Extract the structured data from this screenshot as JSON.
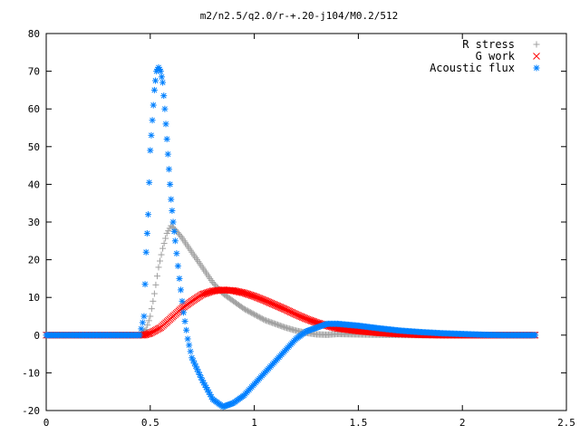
{
  "chart_data": {
    "type": "scatter",
    "title": "m2/n2.5/q2.0/r-+.20-j104/M0.2/512",
    "xlabel": "",
    "ylabel": "",
    "xlim": [
      0,
      2.5
    ],
    "ylim": [
      -20,
      80
    ],
    "xticks": [
      0,
      0.5,
      1,
      1.5,
      2,
      2.5
    ],
    "xtick_labels": [
      "0",
      "0.5",
      "1",
      "1.5",
      "2",
      "2.5"
    ],
    "yticks": [
      -20,
      -10,
      0,
      10,
      20,
      30,
      40,
      50,
      60,
      70,
      80
    ],
    "ytick_labels": [
      "-20",
      "-10",
      "0",
      "10",
      "20",
      "30",
      "40",
      "50",
      "60",
      "70",
      "80"
    ],
    "grid": false,
    "legend_position": "top-right",
    "series": [
      {
        "name": "R stress",
        "marker": "+",
        "color": "#a0a0a0",
        "points": [
          [
            0.0,
            0
          ],
          [
            0.1,
            0
          ],
          [
            0.2,
            0
          ],
          [
            0.3,
            0
          ],
          [
            0.4,
            0
          ],
          [
            0.45,
            0
          ],
          [
            0.48,
            1.5
          ],
          [
            0.5,
            5
          ],
          [
            0.52,
            11
          ],
          [
            0.54,
            18
          ],
          [
            0.56,
            23
          ],
          [
            0.58,
            27
          ],
          [
            0.6,
            29
          ],
          [
            0.62,
            28
          ],
          [
            0.65,
            26
          ],
          [
            0.7,
            22
          ],
          [
            0.75,
            18
          ],
          [
            0.8,
            14
          ],
          [
            0.85,
            11
          ],
          [
            0.9,
            9
          ],
          [
            0.95,
            7
          ],
          [
            1.0,
            5.5
          ],
          [
            1.05,
            4
          ],
          [
            1.1,
            3
          ],
          [
            1.15,
            2
          ],
          [
            1.2,
            1.2
          ],
          [
            1.25,
            0.6
          ],
          [
            1.3,
            0.2
          ],
          [
            1.35,
            0.1
          ],
          [
            1.4,
            0.3
          ],
          [
            1.5,
            0.2
          ],
          [
            1.6,
            0.1
          ],
          [
            1.8,
            0
          ],
          [
            2.0,
            0
          ],
          [
            2.2,
            0
          ],
          [
            2.35,
            0
          ]
        ]
      },
      {
        "name": "G work",
        "marker": "x",
        "color": "#ff0000",
        "points": [
          [
            0.0,
            0
          ],
          [
            0.2,
            0
          ],
          [
            0.4,
            0
          ],
          [
            0.47,
            0
          ],
          [
            0.5,
            0.5
          ],
          [
            0.55,
            2
          ],
          [
            0.6,
            4.5
          ],
          [
            0.65,
            7
          ],
          [
            0.7,
            9
          ],
          [
            0.75,
            10.8
          ],
          [
            0.8,
            11.7
          ],
          [
            0.85,
            12
          ],
          [
            0.9,
            11.8
          ],
          [
            0.95,
            11.2
          ],
          [
            1.0,
            10.3
          ],
          [
            1.05,
            9.2
          ],
          [
            1.1,
            8
          ],
          [
            1.15,
            6.8
          ],
          [
            1.2,
            5.5
          ],
          [
            1.25,
            4.3
          ],
          [
            1.3,
            3.3
          ],
          [
            1.35,
            2.5
          ],
          [
            1.4,
            1.8
          ],
          [
            1.5,
            1.1
          ],
          [
            1.6,
            0.6
          ],
          [
            1.7,
            0.3
          ],
          [
            1.8,
            0.1
          ],
          [
            1.9,
            0
          ],
          [
            2.0,
            0
          ],
          [
            2.2,
            0
          ],
          [
            2.35,
            0
          ]
        ]
      },
      {
        "name": "Acoustic flux",
        "marker": "*",
        "color": "#0080ff",
        "points": [
          [
            0.0,
            0
          ],
          [
            0.1,
            0
          ],
          [
            0.2,
            0
          ],
          [
            0.3,
            0
          ],
          [
            0.4,
            0
          ],
          [
            0.45,
            0
          ],
          [
            0.47,
            5
          ],
          [
            0.48,
            22
          ],
          [
            0.49,
            32
          ],
          [
            0.5,
            49
          ],
          [
            0.51,
            57
          ],
          [
            0.52,
            65
          ],
          [
            0.53,
            70
          ],
          [
            0.54,
            71
          ],
          [
            0.55,
            70
          ],
          [
            0.56,
            67
          ],
          [
            0.57,
            60
          ],
          [
            0.58,
            52
          ],
          [
            0.59,
            44
          ],
          [
            0.6,
            36
          ],
          [
            0.61,
            30
          ],
          [
            0.62,
            25
          ],
          [
            0.64,
            15
          ],
          [
            0.66,
            6
          ],
          [
            0.68,
            -1
          ],
          [
            0.7,
            -6
          ],
          [
            0.75,
            -12
          ],
          [
            0.8,
            -17
          ],
          [
            0.85,
            -19
          ],
          [
            0.9,
            -18
          ],
          [
            0.95,
            -16
          ],
          [
            1.0,
            -13
          ],
          [
            1.05,
            -10
          ],
          [
            1.1,
            -7
          ],
          [
            1.15,
            -4
          ],
          [
            1.2,
            -1
          ],
          [
            1.25,
            1
          ],
          [
            1.3,
            2
          ],
          [
            1.35,
            3
          ],
          [
            1.4,
            3
          ],
          [
            1.5,
            2.5
          ],
          [
            1.6,
            1.8
          ],
          [
            1.7,
            1.2
          ],
          [
            1.8,
            0.8
          ],
          [
            1.9,
            0.5
          ],
          [
            2.0,
            0.3
          ],
          [
            2.1,
            0.1
          ],
          [
            2.2,
            0
          ],
          [
            2.35,
            0
          ]
        ]
      }
    ]
  }
}
